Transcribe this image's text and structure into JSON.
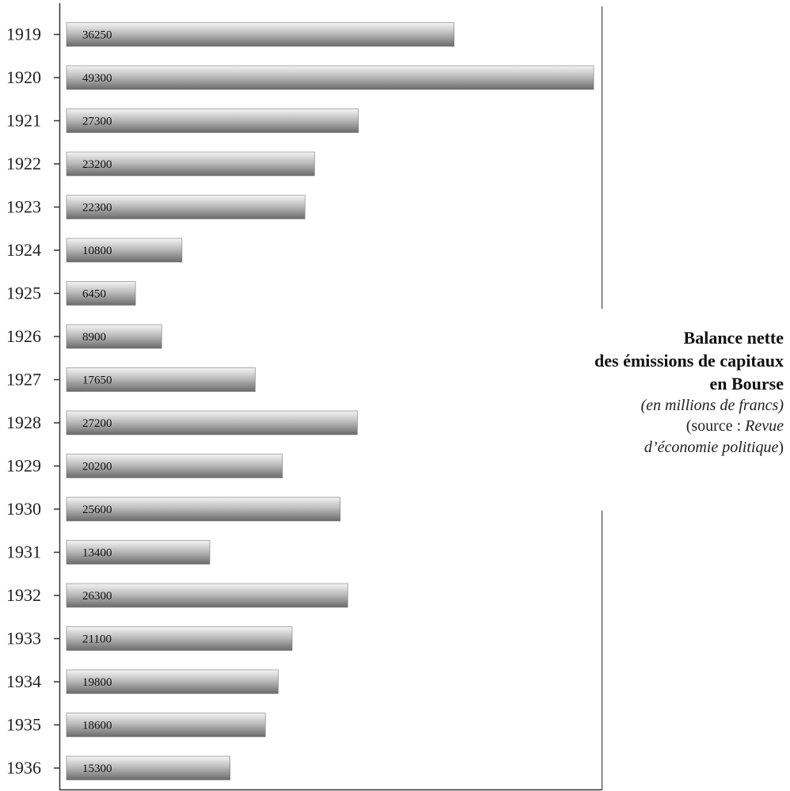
{
  "chart_data": {
    "type": "bar",
    "orientation": "horizontal",
    "categories": [
      "1919",
      "1920",
      "1921",
      "1922",
      "1923",
      "1924",
      "1925",
      "1926",
      "1927",
      "1928",
      "1929",
      "1930",
      "1931",
      "1932",
      "1933",
      "1934",
      "1935",
      "1936"
    ],
    "values": [
      36250,
      49300,
      27300,
      23200,
      22300,
      10800,
      6450,
      8900,
      17650,
      27200,
      20200,
      25600,
      13400,
      26300,
      21100,
      19800,
      18600,
      15300
    ],
    "value_labels": [
      "36250",
      "49300",
      "27300",
      "23200",
      "22300",
      "10800",
      "6450",
      "8900",
      "17650",
      "27200",
      "20200",
      "25600",
      "13400",
      "26300",
      "21100",
      "19800",
      "18600",
      "15300"
    ],
    "xlim": [
      0,
      49300
    ],
    "grid": false,
    "bar_color": "#8c8c8c"
  },
  "caption": {
    "title_line1": "Balance nette",
    "title_line2": "des émissions de capitaux",
    "title_line3": "en Bourse",
    "subtitle": "(en millions de francs)",
    "source_prefix": "(source : ",
    "source_journal_1": "Revue",
    "source_journal_2": "d’économie politique",
    "source_suffix": ")"
  }
}
